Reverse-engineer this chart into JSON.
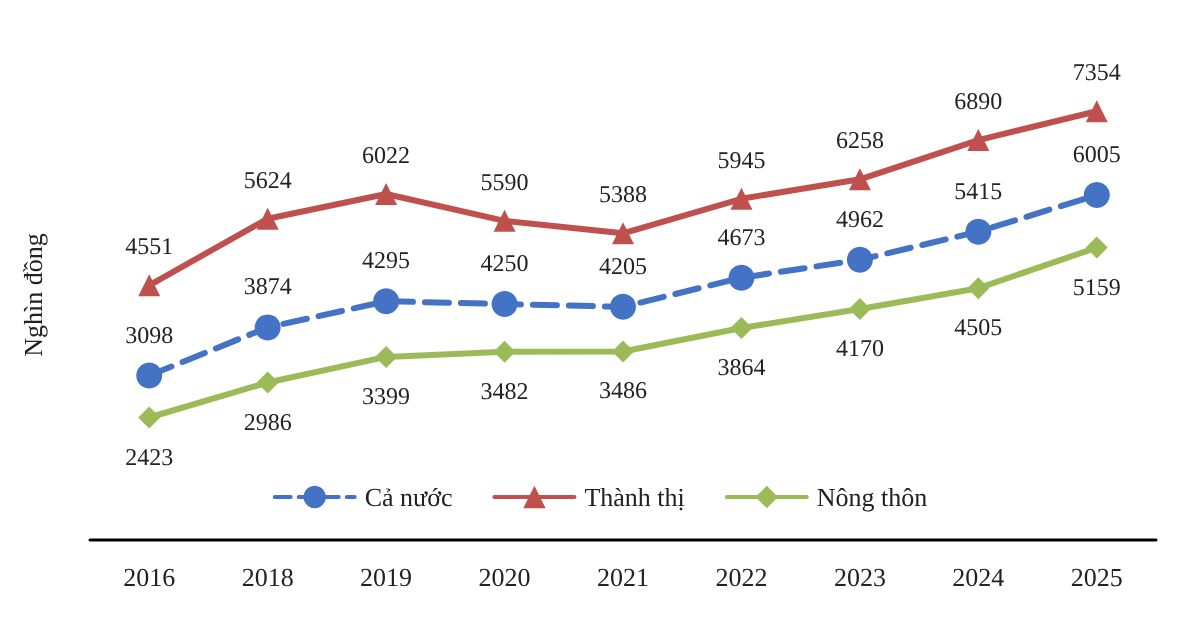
{
  "chart_data": {
    "type": "line",
    "ylabel": "Nghìn đồng",
    "categories": [
      "2016",
      "2018",
      "2019",
      "2020",
      "2021",
      "2022",
      "2023",
      "2024",
      "2025"
    ],
    "series": [
      {
        "name": "Cả nước",
        "color": "#4472c4",
        "marker": "circle",
        "line_style": "dashed",
        "values": [
          3098,
          3874,
          4295,
          4250,
          4205,
          4673,
          4962,
          5415,
          6005
        ]
      },
      {
        "name": "Thành thị",
        "color": "#c0504d",
        "marker": "triangle",
        "line_style": "solid",
        "values": [
          4551,
          5624,
          6022,
          5590,
          5388,
          5945,
          6258,
          6890,
          7354
        ]
      },
      {
        "name": "Nông thôn",
        "color": "#9bbb59",
        "marker": "diamond",
        "line_style": "solid",
        "values": [
          2423,
          2986,
          3399,
          3482,
          3486,
          3864,
          4170,
          4505,
          5159
        ]
      }
    ],
    "tick_labels": "x",
    "data_labels": true,
    "legend": "bottom",
    "grid": false
  }
}
